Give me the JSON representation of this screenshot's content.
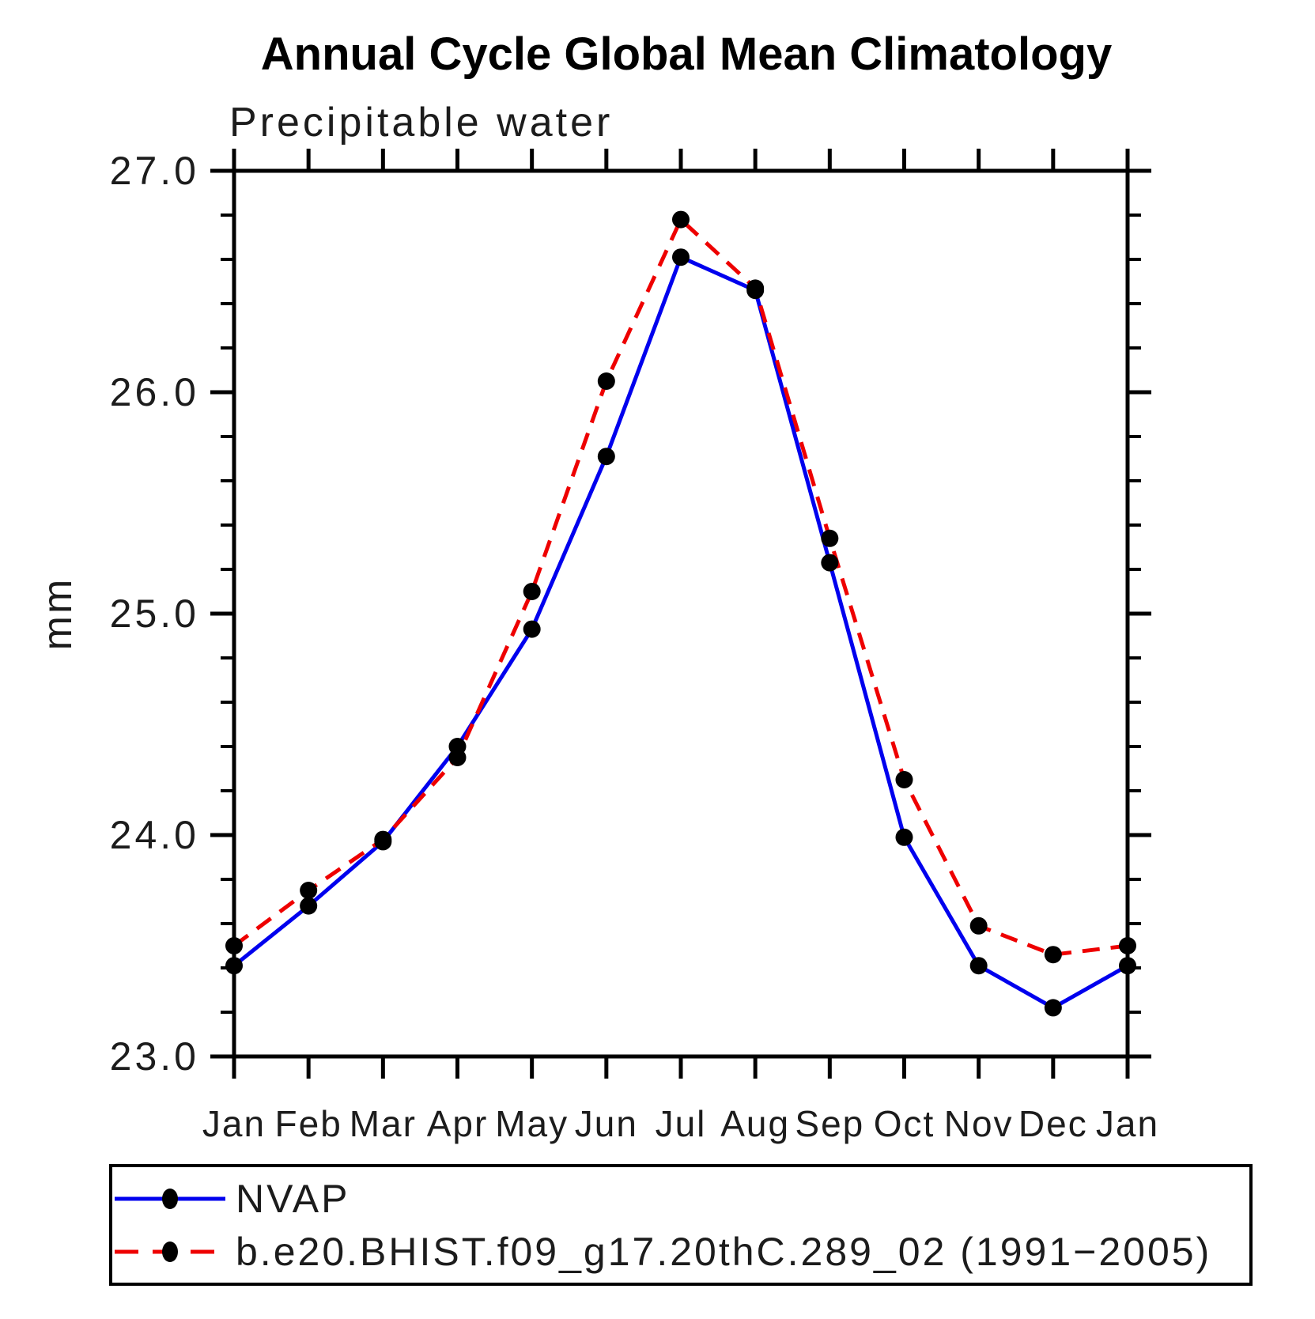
{
  "title": "Annual Cycle Global Mean Climatology",
  "subtitle": "Precipitable water",
  "ylabel": "mm",
  "chart_data": {
    "type": "line",
    "x_categories": [
      "Jan",
      "Feb",
      "Mar",
      "Apr",
      "May",
      "Jun",
      "Jul",
      "Aug",
      "Sep",
      "Oct",
      "Nov",
      "Dec",
      "Jan"
    ],
    "series": [
      {
        "name": "NVAP",
        "color": "#0000ee",
        "line_style": "solid",
        "marker": "filled-circle",
        "marker_color": "#000000",
        "values": [
          23.41,
          23.68,
          23.97,
          24.4,
          24.93,
          25.71,
          26.61,
          26.46,
          25.23,
          23.99,
          23.41,
          23.22,
          23.41
        ]
      },
      {
        "name": "b.e20.BHIST.f09_g17.20thC.289_02 (1991−2005)",
        "color": "#ee0000",
        "line_style": "dashed",
        "marker": "filled-circle",
        "marker_color": "#000000",
        "values": [
          23.5,
          23.75,
          23.98,
          24.35,
          25.1,
          26.05,
          26.78,
          26.47,
          25.34,
          24.25,
          23.59,
          23.46,
          23.5
        ]
      }
    ],
    "ylim": [
      23.0,
      27.0
    ],
    "ytick_major": [
      23.0,
      24.0,
      25.0,
      26.0,
      27.0
    ],
    "ytick_labels": [
      "23.0",
      "24.0",
      "25.0",
      "26.0",
      "27.0"
    ],
    "ytick_minor_step": 0.2,
    "grid": "off",
    "legend_position": "bottom-left-box"
  },
  "legend": {
    "entries": [
      {
        "label": "NVAP"
      },
      {
        "label": "b.e20.BHIST.f09_g17.20thC.289_02 (1991−2005)"
      }
    ]
  },
  "colors": {
    "nvap_line": "#0000ee",
    "model_line": "#ee0000",
    "marker": "#000000",
    "axis": "#000000"
  }
}
